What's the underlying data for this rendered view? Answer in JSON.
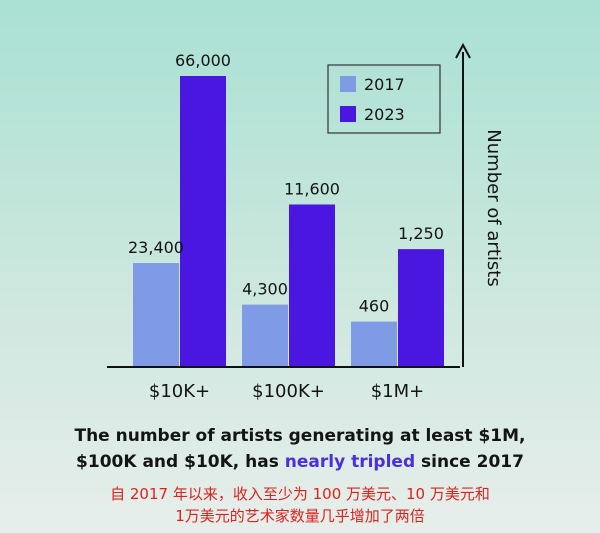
{
  "chart_data": {
    "type": "bar",
    "categories": [
      "$10K+",
      "$100K+",
      "$1M+"
    ],
    "series": [
      {
        "name": "2017",
        "values": [
          23400,
          4300,
          460
        ],
        "labels": [
          "23,400",
          "4,300",
          "460"
        ],
        "color": "#7f9be6"
      },
      {
        "name": "2023",
        "values": [
          66000,
          11600,
          1250
        ],
        "labels": [
          "66,000",
          "11,600",
          "1,250"
        ],
        "color": "#4a17e0"
      }
    ],
    "ylabel": "Number of artists",
    "y_axis": "unscaled per category",
    "legend_position": "top-right",
    "grid": false
  },
  "caption": {
    "part1": "The number of artists generating at least $1M,",
    "part2a": "$100K and $10K, has ",
    "highlight": "nearly tripled",
    "part2b": " since 2017",
    "highlight_color": "#4b2ee0"
  },
  "caption_cn": {
    "line1": "自 2017 年以来，收入至少为 100 万美元、10 万美元和",
    "line2": "1万美元的艺术家数量几乎增加了两倍",
    "color": "#e0221c"
  }
}
